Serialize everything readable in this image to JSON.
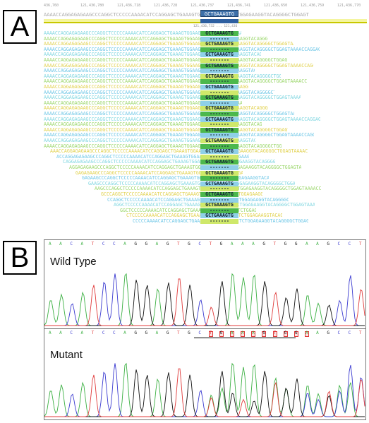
{
  "panels": {
    "a_label": "A",
    "b_label": "B"
  },
  "alignment": {
    "ruler_ticks": [
      "436,760",
      "121,436,780",
      "121,436,718",
      "121,436,728",
      "121,436,737",
      "121,436,741",
      "121,436,650",
      "121,436,759",
      "121,436,770"
    ],
    "reference": "AAAACCAGGAGAGAAGCCCAGGCTCCCCCAAAACATCCAGGAGCTGAAAGTGGAAGCCATCCTCTGGAGAAGGTACAGGGGCTGGAGT",
    "highlight": "GCTGAAAGTG",
    "sub_ruler": "121,436,732 ... 121,436",
    "insertion": "GCTGAAAGTG"
  },
  "chromatogram": {
    "wild_type_title": "Wild Type",
    "mutant_title": "Mutant",
    "wt_bases": [
      "A",
      "A",
      "C",
      "A",
      "T",
      "C",
      "C",
      "A",
      "G",
      "G",
      "A",
      "G",
      "T",
      "G",
      "C",
      "T",
      "G",
      "A",
      "A",
      "A",
      "G",
      "T",
      "G",
      "G",
      "A",
      "A",
      "G",
      "C",
      "C",
      "T"
    ],
    "mut_bases": [
      "A",
      "A",
      "C",
      "A",
      "T",
      "C",
      "C",
      "A",
      "G",
      "G",
      "A",
      "G",
      "T",
      "G",
      "C",
      "T",
      "G",
      "A",
      "A",
      "A",
      "G",
      "T",
      "G",
      "G",
      "A",
      "A",
      "G",
      "C",
      "C",
      "T"
    ],
    "colors": {
      "A": "#3cb043",
      "C": "#3a3ad0",
      "G": "#111111",
      "T": "#e03a3a"
    }
  }
}
